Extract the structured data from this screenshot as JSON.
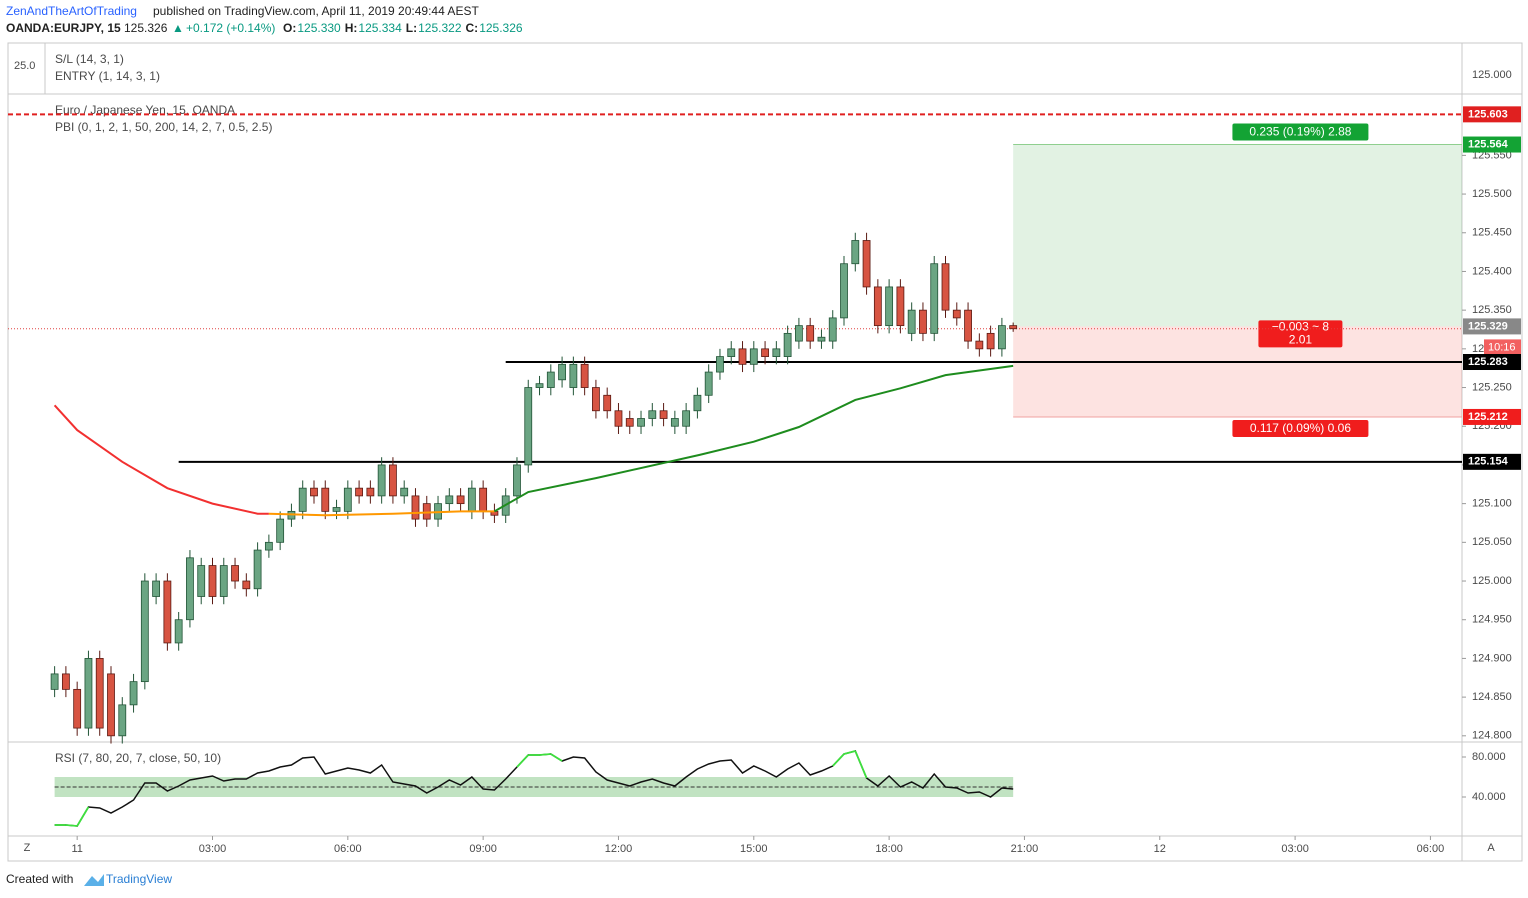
{
  "header": {
    "author": "ZenAndTheArtOfTrading",
    "published": "published on TradingView.com, April 11, 2019 20:49:44 AEST",
    "symbol": "OANDA:EURJPY, 15",
    "last": "125.326",
    "arrow": "▲",
    "change": "+0.172 (+0.14%)",
    "ohlc": [
      {
        "key": "O:",
        "value": "125.330"
      },
      {
        "key": "H:",
        "value": "125.334"
      },
      {
        "key": "L:",
        "value": "125.322"
      },
      {
        "key": "C:",
        "value": "125.326"
      }
    ]
  },
  "top_pane": {
    "left_label": "25.0",
    "right_label": "125.000",
    "legend": [
      "S/L (14, 3, 1)",
      "ENTRY (1, 14, 3, 1)"
    ]
  },
  "footer": {
    "created": "Created with",
    "brand": "TradingView"
  },
  "corner": {
    "left": "Z",
    "right": "A"
  },
  "chart_data": {
    "type": "candlestick",
    "legend": [
      "Euro / Japanese Yen, 15, OANDA",
      "PBI (0, 1, 2, 1, 50, 200, 14, 2, 7, 0.5, 2.5)"
    ],
    "up_color": "#6ba583",
    "down_color": "#d75442",
    "x": [
      -30,
      -15,
      0,
      15,
      30,
      45,
      60,
      75,
      90,
      105,
      120,
      135,
      150,
      165,
      180,
      195,
      210,
      225,
      240,
      255,
      270,
      285,
      300,
      315,
      330,
      345,
      360,
      375,
      390,
      405,
      420,
      435,
      450,
      465,
      480,
      495,
      510,
      525,
      540,
      555,
      570,
      585,
      600,
      615,
      630,
      645,
      660,
      675,
      690,
      705,
      720,
      735,
      750,
      765,
      780,
      795,
      810,
      825,
      840,
      855,
      870,
      885,
      900,
      915,
      930,
      945,
      960,
      975,
      990,
      1005,
      1020,
      1035,
      1050,
      1065,
      1080,
      1095,
      1110,
      1125,
      1140,
      1155,
      1170,
      1185,
      1200,
      1215,
      1230,
      1245
    ],
    "open": [
      124.86,
      124.88,
      124.86,
      124.81,
      124.9,
      124.88,
      124.8,
      124.84,
      124.87,
      124.98,
      125.0,
      124.92,
      124.95,
      124.98,
      125.02,
      124.98,
      125.02,
      125.0,
      124.99,
      125.04,
      125.05,
      125.08,
      125.09,
      125.12,
      125.12,
      125.09,
      125.09,
      125.12,
      125.12,
      125.11,
      125.15,
      125.11,
      125.11,
      125.1,
      125.08,
      125.1,
      125.11,
      125.09,
      125.12,
      125.09,
      125.085,
      125.11,
      125.15,
      125.25,
      125.25,
      125.26,
      125.25,
      125.28,
      125.25,
      125.24,
      125.22,
      125.21,
      125.2,
      125.21,
      125.22,
      125.2,
      125.2,
      125.22,
      125.24,
      125.27,
      125.29,
      125.3,
      125.28,
      125.3,
      125.29,
      125.29,
      125.31,
      125.33,
      125.31,
      125.31,
      125.34,
      125.41,
      125.44,
      125.38,
      125.33,
      125.38,
      125.32,
      125.35,
      125.32,
      125.41,
      125.35,
      125.35,
      125.31,
      125.32,
      125.3,
      125.33
    ],
    "high": [
      124.89,
      124.89,
      124.87,
      124.91,
      124.91,
      124.89,
      124.85,
      124.88,
      125.01,
      125.01,
      125.01,
      124.96,
      125.04,
      125.03,
      125.03,
      125.03,
      125.03,
      125.01,
      125.05,
      125.06,
      125.09,
      125.1,
      125.13,
      125.13,
      125.13,
      125.105,
      125.13,
      125.13,
      125.13,
      125.16,
      125.16,
      125.13,
      125.12,
      125.11,
      125.11,
      125.12,
      125.12,
      125.13,
      125.13,
      125.1,
      125.12,
      125.16,
      125.26,
      125.265,
      125.28,
      125.29,
      125.29,
      125.29,
      125.26,
      125.25,
      125.23,
      125.22,
      125.22,
      125.23,
      125.23,
      125.22,
      125.23,
      125.25,
      125.28,
      125.3,
      125.31,
      125.31,
      125.31,
      125.31,
      125.31,
      125.33,
      125.34,
      125.34,
      125.325,
      125.35,
      125.42,
      125.45,
      125.45,
      125.39,
      125.39,
      125.39,
      125.36,
      125.36,
      125.42,
      125.42,
      125.36,
      125.36,
      125.32,
      125.33,
      125.34,
      125.334
    ],
    "low": [
      124.85,
      124.85,
      124.8,
      124.8,
      124.8,
      124.79,
      124.79,
      124.83,
      124.86,
      124.97,
      124.91,
      124.91,
      124.94,
      124.97,
      124.97,
      124.97,
      124.99,
      124.98,
      124.98,
      125.03,
      125.04,
      125.07,
      125.08,
      125.1,
      125.08,
      125.08,
      125.08,
      125.1,
      125.1,
      125.1,
      125.1,
      125.1,
      125.07,
      125.07,
      125.07,
      125.09,
      125.09,
      125.08,
      125.08,
      125.075,
      125.075,
      125.1,
      125.14,
      125.24,
      125.24,
      125.25,
      125.24,
      125.24,
      125.21,
      125.21,
      125.19,
      125.19,
      125.19,
      125.2,
      125.2,
      125.19,
      125.19,
      125.21,
      125.23,
      125.26,
      125.28,
      125.27,
      125.27,
      125.28,
      125.28,
      125.28,
      125.3,
      125.3,
      125.3,
      125.3,
      125.33,
      125.4,
      125.37,
      125.32,
      125.32,
      125.32,
      125.31,
      125.31,
      125.31,
      125.34,
      125.33,
      125.3,
      125.29,
      125.29,
      125.29,
      125.322
    ],
    "close": [
      124.88,
      124.86,
      124.81,
      124.9,
      124.81,
      124.8,
      124.84,
      124.87,
      125.0,
      125.0,
      124.92,
      124.95,
      125.03,
      125.02,
      124.98,
      125.02,
      125.0,
      124.99,
      125.04,
      125.05,
      125.08,
      125.09,
      125.12,
      125.11,
      125.09,
      125.095,
      125.12,
      125.11,
      125.11,
      125.15,
      125.11,
      125.12,
      125.08,
      125.08,
      125.1,
      125.11,
      125.1,
      125.12,
      125.09,
      125.085,
      125.11,
      125.15,
      125.25,
      125.255,
      125.27,
      125.28,
      125.28,
      125.25,
      125.22,
      125.22,
      125.2,
      125.2,
      125.21,
      125.22,
      125.21,
      125.21,
      125.22,
      125.24,
      125.27,
      125.29,
      125.3,
      125.28,
      125.3,
      125.29,
      125.3,
      125.32,
      125.33,
      125.31,
      125.315,
      125.34,
      125.41,
      125.44,
      125.38,
      125.33,
      125.38,
      125.33,
      125.35,
      125.32,
      125.41,
      125.35,
      125.34,
      125.31,
      125.3,
      125.3,
      125.33,
      125.326
    ],
    "ma_lines": [
      {
        "color": "#f23030",
        "x": [
          -30,
          0,
          60,
          120,
          180,
          240,
          255
        ],
        "values": [
          125.227,
          125.195,
          125.154,
          125.12,
          125.1,
          125.087,
          125.087
        ]
      },
      {
        "color": "#ff9800",
        "x": [
          255,
          330,
          420,
          510,
          555
        ],
        "values": [
          125.087,
          125.085,
          125.087,
          125.09,
          125.09
        ]
      },
      {
        "color": "#1e8c1e",
        "x": [
          555,
          600,
          690,
          828,
          900,
          960,
          1035,
          1095,
          1155,
          1245
        ],
        "values": [
          125.09,
          125.115,
          125.133,
          125.163,
          125.18,
          125.199,
          125.234,
          125.249,
          125.266,
          125.278
        ]
      }
    ],
    "resistance_line": {
      "value": 125.603,
      "color": "#e02020"
    },
    "levels": [
      {
        "value": 125.283,
        "start_x": 570
      },
      {
        "value": 125.154,
        "start_x": 135
      }
    ],
    "position": {
      "start_x": 1245,
      "entry": 125.329,
      "target": 125.564,
      "stop": 125.212,
      "target_label": "0.235 (0.19%) 2.88",
      "stop_label": "0.117 (0.09%) 0.06",
      "center_label": [
        "−0.003 ~ 8",
        "2.01"
      ],
      "countdown": "10:16"
    },
    "xlim": [
      -92,
      1842
    ],
    "xticks": [
      {
        "value": 0,
        "label": "11"
      },
      {
        "value": 180,
        "label": "03:00"
      },
      {
        "value": 360,
        "label": "06:00"
      },
      {
        "value": 540,
        "label": "09:00"
      },
      {
        "value": 720,
        "label": "12:00"
      },
      {
        "value": 900,
        "label": "15:00"
      },
      {
        "value": 1080,
        "label": "18:00"
      },
      {
        "value": 1260,
        "label": "21:00"
      },
      {
        "value": 1440,
        "label": "12"
      },
      {
        "value": 1620,
        "label": "03:00"
      },
      {
        "value": 1800,
        "label": "06:00"
      }
    ],
    "ylim": [
      124.792,
      125.628
    ],
    "yticks": [
      {
        "value": 124.8,
        "label": "124.800"
      },
      {
        "value": 124.85,
        "label": "124.850"
      },
      {
        "value": 124.9,
        "label": "124.900"
      },
      {
        "value": 124.95,
        "label": "124.950"
      },
      {
        "value": 125.0,
        "label": "125.000"
      },
      {
        "value": 125.05,
        "label": "125.050"
      },
      {
        "value": 125.1,
        "label": "125.100"
      },
      {
        "value": 125.15,
        "label": "125.150"
      },
      {
        "value": 125.2,
        "label": "125.200"
      },
      {
        "value": 125.25,
        "label": "125.250"
      },
      {
        "value": 125.3,
        "label": "125.300"
      },
      {
        "value": 125.35,
        "label": "125.350"
      },
      {
        "value": 125.4,
        "label": "125.400"
      },
      {
        "value": 125.45,
        "label": "125.450"
      },
      {
        "value": 125.5,
        "label": "125.500"
      },
      {
        "value": 125.55,
        "label": "125.550"
      }
    ],
    "grid": false,
    "rsi": {
      "legend": "RSI (7, 80, 20, 7, close, 50, 10)",
      "values": [
        12,
        12,
        11,
        30,
        29,
        24,
        30,
        37,
        54,
        54,
        46,
        51,
        57,
        59,
        61,
        56,
        58,
        58,
        64,
        66,
        70,
        72,
        79,
        80,
        63,
        66,
        69,
        67,
        64,
        72,
        55,
        53,
        51,
        44,
        50,
        57,
        52,
        60,
        48,
        47,
        58,
        70,
        82,
        82,
        83,
        76,
        80,
        79,
        65,
        57,
        54,
        51,
        55,
        58,
        54,
        51,
        60,
        68,
        73,
        76,
        77,
        64,
        71,
        66,
        60,
        68,
        74,
        62,
        66,
        71,
        83,
        86,
        59,
        51,
        61,
        50,
        55,
        49,
        63,
        50,
        49,
        44,
        45,
        40,
        49,
        48
      ],
      "color": "#111111",
      "highlight_color": "#3ee03e",
      "highlight_levels": [
        20,
        80
      ],
      "band": [
        40,
        60
      ],
      "mid": 50,
      "ylim": [
        2,
        94
      ],
      "yticks": [
        {
          "value": 80,
          "label": "80.000"
        },
        {
          "value": 40,
          "label": "40.000"
        }
      ]
    }
  }
}
